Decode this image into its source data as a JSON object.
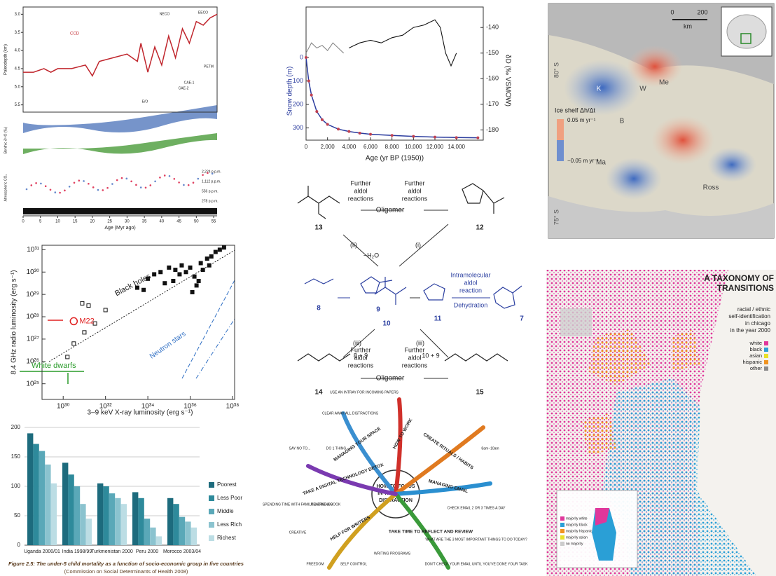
{
  "paleo": {
    "y_label": "Paleodepth (km)",
    "x_label": "Age (Myr ago)",
    "xlim": [
      0,
      56
    ],
    "xticks": [
      0,
      5,
      10,
      15,
      20,
      25,
      30,
      35,
      40,
      45,
      50,
      55
    ],
    "ylim": [
      5.7,
      2.8
    ],
    "yticks": [
      {
        "value": 3,
        "label": "3.0"
      },
      3.5,
      {
        "value": 4,
        "label": "4.0"
      },
      4.5,
      {
        "value": 5,
        "label": "5.0"
      },
      5.5
    ],
    "ccd": {
      "name": "CCD",
      "color": "#c0262d",
      "x": [
        0,
        3,
        6,
        8,
        10,
        14,
        18,
        20,
        22,
        26,
        30,
        33,
        34,
        36,
        38,
        40,
        42,
        44,
        46,
        48,
        50,
        52,
        54,
        56
      ],
      "values": [
        4.6,
        4.6,
        4.5,
        4.6,
        4.5,
        4.5,
        4.4,
        4.7,
        4.3,
        4.2,
        4.1,
        4.3,
        3.8,
        4.6,
        3.9,
        4.4,
        3.6,
        4.2,
        3.4,
        3.8,
        3.2,
        3.3,
        3.1,
        3.0
      ]
    },
    "events": [
      "NECO",
      "EECO",
      "PETM",
      "CAE-1",
      "CAE-2",
      "E/O"
    ],
    "benthic_label": "Benthic δ¹⁸O (‰)",
    "co2_label": "Atmospheric CO₂",
    "co2_levels": [
      "2,224 p.p.m.",
      "1,112 p.p.m.",
      "556 p.p.m.",
      "278 p.p.m."
    ]
  },
  "snow": {
    "y_label": "Snow depth (m)",
    "y2_label": "δD (‰ VSMOW)",
    "x_label": "Age (yr BP (1950))",
    "xlim": [
      0,
      16500
    ],
    "xticks": [
      0,
      {
        "value": 2000,
        "label": "2,000"
      },
      {
        "value": 4000,
        "label": "4,000"
      },
      {
        "value": 6000,
        "label": "6,000"
      },
      {
        "value": 8000,
        "label": "8,000"
      },
      {
        "value": 10000,
        "label": "10,000"
      },
      {
        "value": 12000,
        "label": "12,000"
      },
      {
        "value": 14000,
        "label": "14,000"
      }
    ],
    "ylim": [
      -215,
      352
    ],
    "yticks": [
      0,
      100,
      200,
      300
    ],
    "y2lim": [
      -132,
      -184
    ],
    "y2ticks": [
      -140,
      -150,
      -160,
      -170,
      -180
    ],
    "series": [
      {
        "color": "#2b3c9e",
        "x": [
          0,
          250,
          500,
          1000,
          1500,
          2000,
          3000,
          4000,
          5000,
          6000,
          8000,
          10000,
          12000,
          14000,
          16000
        ],
        "values": [
          0,
          100,
          160,
          230,
          265,
          285,
          305,
          315,
          322,
          327,
          332,
          336,
          339,
          341,
          342
        ]
      },
      {
        "color": "#888888",
        "axis": "y2",
        "x": [
          0,
          500,
          1000,
          1500,
          2000,
          2500,
          3000,
          3500
        ],
        "values": [
          -150,
          -146,
          -148,
          -147,
          -149,
          -146,
          -148,
          -150
        ]
      },
      {
        "color": "#111111",
        "axis": "y2",
        "x": [
          4000,
          4500,
          5000,
          6000,
          7000,
          8000,
          9000,
          10000,
          11000,
          11500,
          12000,
          12500,
          13000,
          13500,
          14000
        ],
        "values": [
          -148,
          -147,
          -146,
          -145,
          -146,
          -144,
          -143,
          -140,
          -139,
          -138,
          -137,
          -140,
          -150,
          -155,
          -150
        ]
      }
    ]
  },
  "antarctica": {
    "scale": [
      "0",
      "200",
      "km"
    ],
    "lats": [
      "80° S",
      "75° S"
    ],
    "places": [
      "K",
      "Me",
      "W",
      "B",
      "Ma",
      "Ross"
    ],
    "legend_title": "Ice shelf Δh/Δt",
    "legend_high": "0.05 m yr⁻¹",
    "legend_low": "−0.05 m yr⁻¹"
  },
  "luminosity": {
    "y_label": "8.4 GHz radio luminosity (erg s⁻¹)",
    "x_label": "3–9 keV X-ray luminosity (erg s⁻¹)",
    "xlim": [
      29,
      38.1
    ],
    "xticks": [
      {
        "value": 30,
        "label": "10³⁰"
      },
      {
        "value": 32,
        "label": "10³²"
      },
      {
        "value": 34,
        "label": "10³⁴"
      },
      {
        "value": 36,
        "label": "10³⁶"
      },
      {
        "value": 38,
        "label": "10³⁸"
      }
    ],
    "ylim": [
      24.3,
      31.2
    ],
    "yticks": [
      {
        "value": 25,
        "label": "10²⁵"
      },
      {
        "value": 26,
        "label": "10²⁶"
      },
      {
        "value": 27,
        "label": "10²⁷"
      },
      {
        "value": 28,
        "label": "10²⁸"
      },
      {
        "value": 29,
        "label": "10²⁹"
      },
      {
        "value": 30,
        "label": "10³⁰"
      },
      {
        "value": 31,
        "label": "10³¹"
      }
    ],
    "black_holes": {
      "x": [
        33.5,
        34,
        34.3,
        34.6,
        35,
        35.3,
        35.6,
        35.8,
        36,
        36.2,
        36.4,
        36.5,
        36.6,
        36.8,
        37,
        37.2,
        37.4,
        37.6,
        34.8,
        35.5,
        36.3,
        36.9,
        36.1,
        35.2,
        33.8
      ],
      "values": [
        29.3,
        29.7,
        29.9,
        30,
        30.2,
        30.1,
        30.3,
        30,
        30.2,
        29.8,
        29.6,
        30.4,
        30.1,
        30.6,
        30.7,
        30.9,
        31,
        31.1,
        29.5,
        29.9,
        29.4,
        30.3,
        29.1,
        29.6,
        29.2
      ]
    },
    "open": {
      "x": [
        30.2,
        30.5,
        31,
        31.5,
        32,
        31.2,
        30.9
      ],
      "values": [
        26.2,
        26.8,
        27.3,
        27.7,
        28.3,
        28.5,
        28.6
      ]
    },
    "m22": {
      "name": "M22",
      "x": 30.5,
      "value": 27.8
    },
    "labels": [
      "Black holes",
      "Neutron stars",
      "White dwarfs"
    ]
  },
  "chemistry": {
    "compounds": [
      "13",
      "12",
      "9",
      "8",
      "10",
      "11",
      "7",
      "14",
      "15"
    ],
    "steps": [
      "(i)",
      "(ii)",
      "(iii)",
      "(iii)",
      "−H₂O",
      "8 + 9",
      "10 + 9"
    ],
    "further_tl": [
      "Further",
      "aldol",
      "reactions"
    ],
    "further_tr": [
      "Further",
      "aldol",
      "reactions"
    ],
    "further_bl": [
      "Further",
      "aldol",
      "reactions"
    ],
    "further_br": [
      "Further",
      "aldol",
      "reactions"
    ],
    "oligomer_top": "Oligomer",
    "oligomer_bottom": "Oligomer",
    "intramolecular": [
      "Intramolecular",
      "aldol",
      "reaction"
    ],
    "dehydration": "Dehydration"
  },
  "under5": {
    "type": "bar",
    "categories": [
      "Uganda 2000/01",
      "India 1998/99",
      "Turkmenistan 2000",
      "Peru 2000",
      "Morocco 2003/04"
    ],
    "ylim": [
      0,
      200
    ],
    "yticks": [
      0,
      50,
      100,
      150,
      200
    ],
    "grid": true,
    "series": [
      {
        "name": "Poorest",
        "color": "#1d6b7d",
        "values": [
          190,
          140,
          105,
          90,
          80
        ]
      },
      {
        "name": "Less Poor",
        "color": "#2e8a9b",
        "values": [
          172,
          120,
          100,
          80,
          70
        ]
      },
      {
        "name": "Middle",
        "color": "#5aa8b8",
        "values": [
          160,
          100,
          88,
          45,
          48
        ]
      },
      {
        "name": "Less Rich",
        "color": "#8bc3cf",
        "values": [
          137,
          70,
          80,
          30,
          40
        ]
      },
      {
        "name": "Richest",
        "color": "#bcdde4",
        "values": [
          105,
          45,
          70,
          15,
          30
        ]
      }
    ],
    "caption": "Figure 2.5: The under-5 child mortality as a function of socio-economic group in five countries",
    "source": "(Commission on Social Determinants of Health 2008)"
  },
  "mindmap": {
    "center": [
      "HOW TO FOCUS",
      "IN THE AGE OF",
      "DISTRACTION"
    ],
    "branches": [
      "MANAGING YOUR SPACE",
      "HOW TO WORK",
      "CREATE RITUALS / HABITS",
      "MANAGING EMAIL",
      "TAKE TIME TO REFLECT AND REVIEW",
      "HELP FOR WRITERS",
      "TAKE A DIGITAL TECHNOLOGY DETOX"
    ],
    "notes": [
      "SAY NO TO...",
      "DO 1 THING",
      "CLEAR AWAY ALL DISTRACTIONS",
      "USE AN INTRAY FOR INCOMING PAPERS",
      "FREEDOM",
      "SELF CONTROL",
      "WRITING PROGRAMS",
      "WHAT ARE THE 3 MOST IMPORTANT THINGS TO DO TODAY?",
      "DON'T CHECK YOUR EMAIL UNTIL YOU'VE DONE YOUR TASK",
      "CHECK EMAIL 2 OR 3 TIMES A DAY",
      "SPENDING TIME WITH FAMILY & FRIENDS",
      "READING A BOOK",
      "CREATIVE",
      "8am~10am"
    ]
  },
  "chicago": {
    "title": [
      "A TAXONOMY OF",
      "TRANSITIONS"
    ],
    "subtitle": [
      "racial / ethnic",
      "self-identification",
      "in chicago",
      "in the year 2000"
    ],
    "legend": [
      {
        "name": "white",
        "color": "#e0379b"
      },
      {
        "name": "black",
        "color": "#2a9fd6"
      },
      {
        "name": "asian",
        "color": "#e8e12a"
      },
      {
        "name": "hispanic",
        "color": "#f0931f"
      },
      {
        "name": "other",
        "color": "#8a8a8a"
      }
    ],
    "inset_legend": [
      "majority white",
      "majority black",
      "majority hispanic",
      "majority asian",
      "no majority"
    ]
  }
}
